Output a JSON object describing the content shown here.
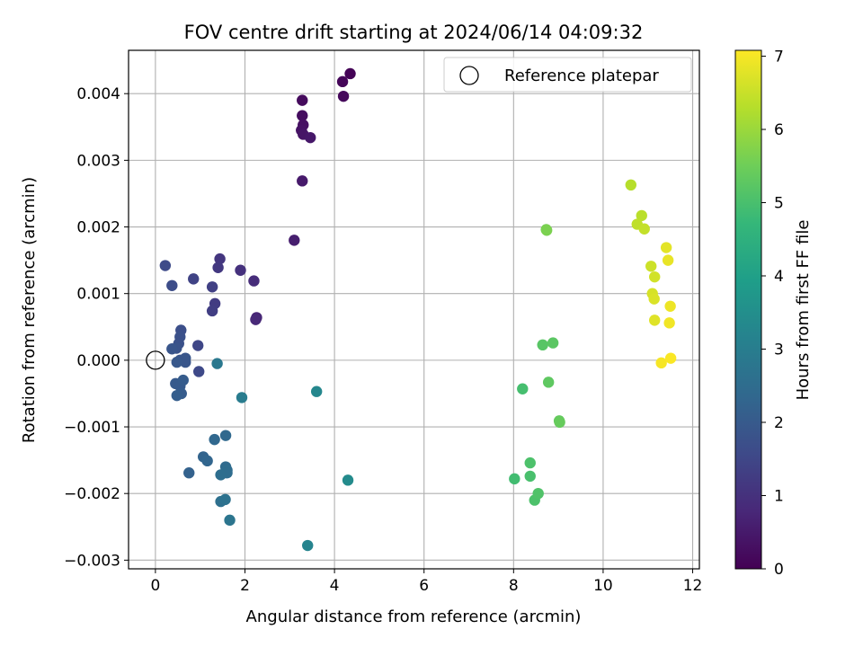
{
  "chart_data": {
    "type": "scatter",
    "title": "FOV centre drift starting at 2024/06/14 04:09:32",
    "xlabel": "Angular distance from reference (arcmin)",
    "ylabel": "Rotation from reference (arcmin)",
    "xlim": [
      -0.6,
      12.15
    ],
    "ylim": [
      -0.00313,
      0.00465
    ],
    "xticks": [
      0,
      2,
      4,
      6,
      8,
      10,
      12
    ],
    "xtick_labels": [
      "0",
      "2",
      "4",
      "6",
      "8",
      "10",
      "12"
    ],
    "yticks": [
      -0.003,
      -0.002,
      -0.001,
      0.0,
      0.001,
      0.002,
      0.003,
      0.004
    ],
    "ytick_labels": [
      "−0.003",
      "−0.002",
      "−0.001",
      "0.000",
      "0.001",
      "0.002",
      "0.003",
      "0.004"
    ],
    "grid": true,
    "legend": {
      "position": "top-right",
      "entries": [
        {
          "label": "Reference platepar",
          "marker": "open-circle",
          "x": 0,
          "y": 0
        }
      ]
    },
    "colorbar": {
      "label": "Hours from first FF file",
      "colormap": "viridis",
      "range": [
        0,
        7.08
      ],
      "ticks": [
        0,
        1,
        2,
        3,
        4,
        5,
        6,
        7
      ],
      "tick_labels": [
        "0",
        "1",
        "2",
        "3",
        "4",
        "5",
        "6",
        "7"
      ]
    },
    "series": [
      {
        "points": [
          {
            "x": 4.35,
            "y": 0.0043,
            "c": 0.05
          },
          {
            "x": 4.18,
            "y": 0.00418,
            "c": 0.1
          },
          {
            "x": 4.2,
            "y": 0.00396,
            "c": 0.15
          },
          {
            "x": 3.28,
            "y": 0.0039,
            "c": 0.2
          },
          {
            "x": 3.28,
            "y": 0.00367,
            "c": 0.25
          },
          {
            "x": 3.3,
            "y": 0.00353,
            "c": 0.3
          },
          {
            "x": 3.26,
            "y": 0.00345,
            "c": 0.35
          },
          {
            "x": 3.3,
            "y": 0.00339,
            "c": 0.4
          },
          {
            "x": 3.46,
            "y": 0.00334,
            "c": 0.45
          },
          {
            "x": 3.28,
            "y": 0.00269,
            "c": 0.5
          },
          {
            "x": 3.1,
            "y": 0.0018,
            "c": 0.6
          },
          {
            "x": 2.26,
            "y": 0.00064,
            "c": 0.75
          },
          {
            "x": 2.24,
            "y": 0.00061,
            "c": 0.8
          },
          {
            "x": 2.2,
            "y": 0.00119,
            "c": 0.9
          },
          {
            "x": 1.9,
            "y": 0.00135,
            "c": 1.0
          },
          {
            "x": 1.44,
            "y": 0.00152,
            "c": 1.1
          },
          {
            "x": 1.4,
            "y": 0.00139,
            "c": 1.15
          },
          {
            "x": 1.33,
            "y": 0.00085,
            "c": 1.25
          },
          {
            "x": 1.27,
            "y": 0.00074,
            "c": 1.3
          },
          {
            "x": 1.27,
            "y": 0.0011,
            "c": 1.35
          },
          {
            "x": 0.85,
            "y": 0.00122,
            "c": 1.4
          },
          {
            "x": 0.95,
            "y": 0.00022,
            "c": 1.5
          },
          {
            "x": 0.97,
            "y": -0.00017,
            "c": 1.55
          },
          {
            "x": 0.22,
            "y": 0.00142,
            "c": 1.6
          },
          {
            "x": 0.37,
            "y": 0.00112,
            "c": 1.65
          },
          {
            "x": 0.57,
            "y": 0.00045,
            "c": 1.7
          },
          {
            "x": 0.55,
            "y": 0.00035,
            "c": 1.75
          },
          {
            "x": 0.52,
            "y": 0.00025,
            "c": 1.75
          },
          {
            "x": 0.47,
            "y": 0.00018,
            "c": 1.8
          },
          {
            "x": 0.37,
            "y": 0.00017,
            "c": 1.85
          },
          {
            "x": 0.55,
            "y": 0.0,
            "c": 1.85
          },
          {
            "x": 0.67,
            "y": 3e-05,
            "c": 1.9
          },
          {
            "x": 0.67,
            "y": -3e-05,
            "c": 1.9
          },
          {
            "x": 0.48,
            "y": -3e-05,
            "c": 1.95
          },
          {
            "x": 0.45,
            "y": -0.00035,
            "c": 2.0
          },
          {
            "x": 0.55,
            "y": -0.00039,
            "c": 2.0
          },
          {
            "x": 0.62,
            "y": -0.0003,
            "c": 2.05
          },
          {
            "x": 0.58,
            "y": -0.0005,
            "c": 2.05
          },
          {
            "x": 0.48,
            "y": -0.00053,
            "c": 2.1
          },
          {
            "x": 0.75,
            "y": -0.00169,
            "c": 2.2
          },
          {
            "x": 1.07,
            "y": -0.00145,
            "c": 2.25
          },
          {
            "x": 1.16,
            "y": -0.00151,
            "c": 2.3
          },
          {
            "x": 1.32,
            "y": -0.00119,
            "c": 2.35
          },
          {
            "x": 1.57,
            "y": -0.00113,
            "c": 2.4
          },
          {
            "x": 1.57,
            "y": -0.0016,
            "c": 2.45
          },
          {
            "x": 1.6,
            "y": -0.00165,
            "c": 2.5
          },
          {
            "x": 1.6,
            "y": -0.00169,
            "c": 2.5
          },
          {
            "x": 1.46,
            "y": -0.00172,
            "c": 2.55
          },
          {
            "x": 1.46,
            "y": -0.00212,
            "c": 2.6
          },
          {
            "x": 1.56,
            "y": -0.00209,
            "c": 2.65
          },
          {
            "x": 1.66,
            "y": -0.0024,
            "c": 2.75
          },
          {
            "x": 1.38,
            "y": -5e-05,
            "c": 2.85
          },
          {
            "x": 1.93,
            "y": -0.00056,
            "c": 2.95
          },
          {
            "x": 3.4,
            "y": -0.00278,
            "c": 3.2
          },
          {
            "x": 3.6,
            "y": -0.00047,
            "c": 3.3
          },
          {
            "x": 4.3,
            "y": -0.0018,
            "c": 3.4
          },
          {
            "x": 8.02,
            "y": -0.00178,
            "c": 4.9
          },
          {
            "x": 8.2,
            "y": -0.00043,
            "c": 4.95
          },
          {
            "x": 8.37,
            "y": -0.00174,
            "c": 5.0
          },
          {
            "x": 8.37,
            "y": -0.00154,
            "c": 5.05
          },
          {
            "x": 8.47,
            "y": -0.0021,
            "c": 5.05
          },
          {
            "x": 8.55,
            "y": -0.002,
            "c": 5.1
          },
          {
            "x": 8.65,
            "y": 0.00023,
            "c": 5.2
          },
          {
            "x": 8.88,
            "y": 0.00026,
            "c": 5.25
          },
          {
            "x": 8.78,
            "y": -0.00033,
            "c": 5.3
          },
          {
            "x": 9.02,
            "y": -0.00091,
            "c": 5.35
          },
          {
            "x": 9.03,
            "y": -0.00093,
            "c": 5.4
          },
          {
            "x": 8.73,
            "y": 0.00196,
            "c": 5.6
          },
          {
            "x": 8.74,
            "y": 0.00195,
            "c": 5.65
          },
          {
            "x": 10.62,
            "y": 0.00263,
            "c": 6.3
          },
          {
            "x": 10.86,
            "y": 0.00217,
            "c": 6.35
          },
          {
            "x": 10.76,
            "y": 0.00204,
            "c": 6.4
          },
          {
            "x": 10.92,
            "y": 0.00197,
            "c": 6.45
          },
          {
            "x": 11.07,
            "y": 0.00141,
            "c": 6.55
          },
          {
            "x": 11.15,
            "y": 0.00125,
            "c": 6.6
          },
          {
            "x": 11.1,
            "y": 0.001,
            "c": 6.65
          },
          {
            "x": 11.14,
            "y": 0.00092,
            "c": 6.7
          },
          {
            "x": 11.15,
            "y": 0.0006,
            "c": 6.75
          },
          {
            "x": 11.41,
            "y": 0.00169,
            "c": 6.8
          },
          {
            "x": 11.45,
            "y": 0.0015,
            "c": 6.85
          },
          {
            "x": 11.5,
            "y": 0.00081,
            "c": 6.9
          },
          {
            "x": 11.48,
            "y": 0.00056,
            "c": 6.95
          },
          {
            "x": 11.3,
            "y": -4e-05,
            "c": 7.0
          },
          {
            "x": 11.51,
            "y": 3e-05,
            "c": 7.05
          }
        ]
      }
    ]
  }
}
